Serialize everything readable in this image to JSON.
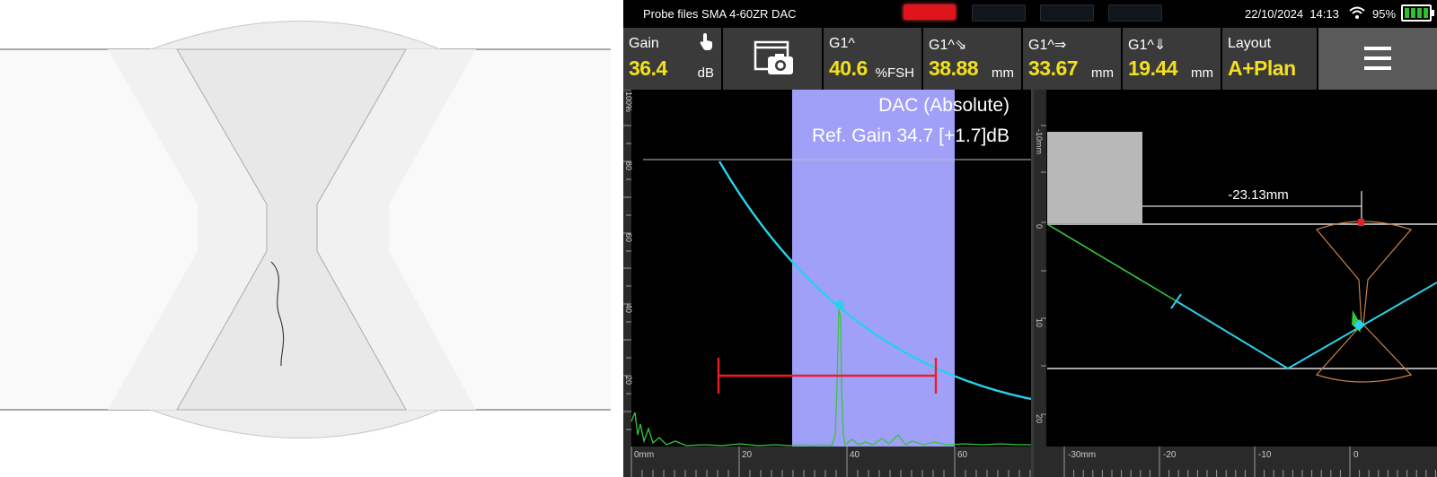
{
  "statusbar": {
    "title": "Probe files SMA 4-60ZR DAC",
    "date": "22/10/2024",
    "time": "14:13",
    "battery": "95%"
  },
  "readouts": {
    "gain": {
      "label": "Gain",
      "value": "36.4",
      "unit": "dB"
    },
    "g1_amp": {
      "label": "G1^",
      "value": "40.6",
      "unit": "%FSH"
    },
    "g1_path": {
      "label": "G1^⇘",
      "value": "38.88",
      "unit": "mm"
    },
    "g1_surface": {
      "label": "G1^⇒",
      "value": "33.67",
      "unit": "mm"
    },
    "g1_depth": {
      "label": "G1^⇓",
      "value": "19.44",
      "unit": "mm"
    },
    "layout": {
      "label": "Layout",
      "value": "A+Plan"
    }
  },
  "ascan": {
    "dac_label": "DAC (Absolute)",
    "ref_gain_label": "Ref. Gain 34.7 [+1.7]dB",
    "y_ticks": [
      "100%",
      "80",
      "60",
      "40",
      "20"
    ],
    "x_ticks": [
      "0mm",
      "20",
      "40",
      "60"
    ],
    "gate_fill": "#a0a0f8",
    "dac_color": "#2bd0e8",
    "signal_color": "#34c83a",
    "gate_color": "#ee1c24"
  },
  "plan": {
    "distance_label": "-23.13mm",
    "y_ticks": [
      "-10mm",
      "0",
      "10",
      "20"
    ],
    "x_ticks": [
      "-30mm",
      "-20",
      "-10",
      "0"
    ]
  }
}
